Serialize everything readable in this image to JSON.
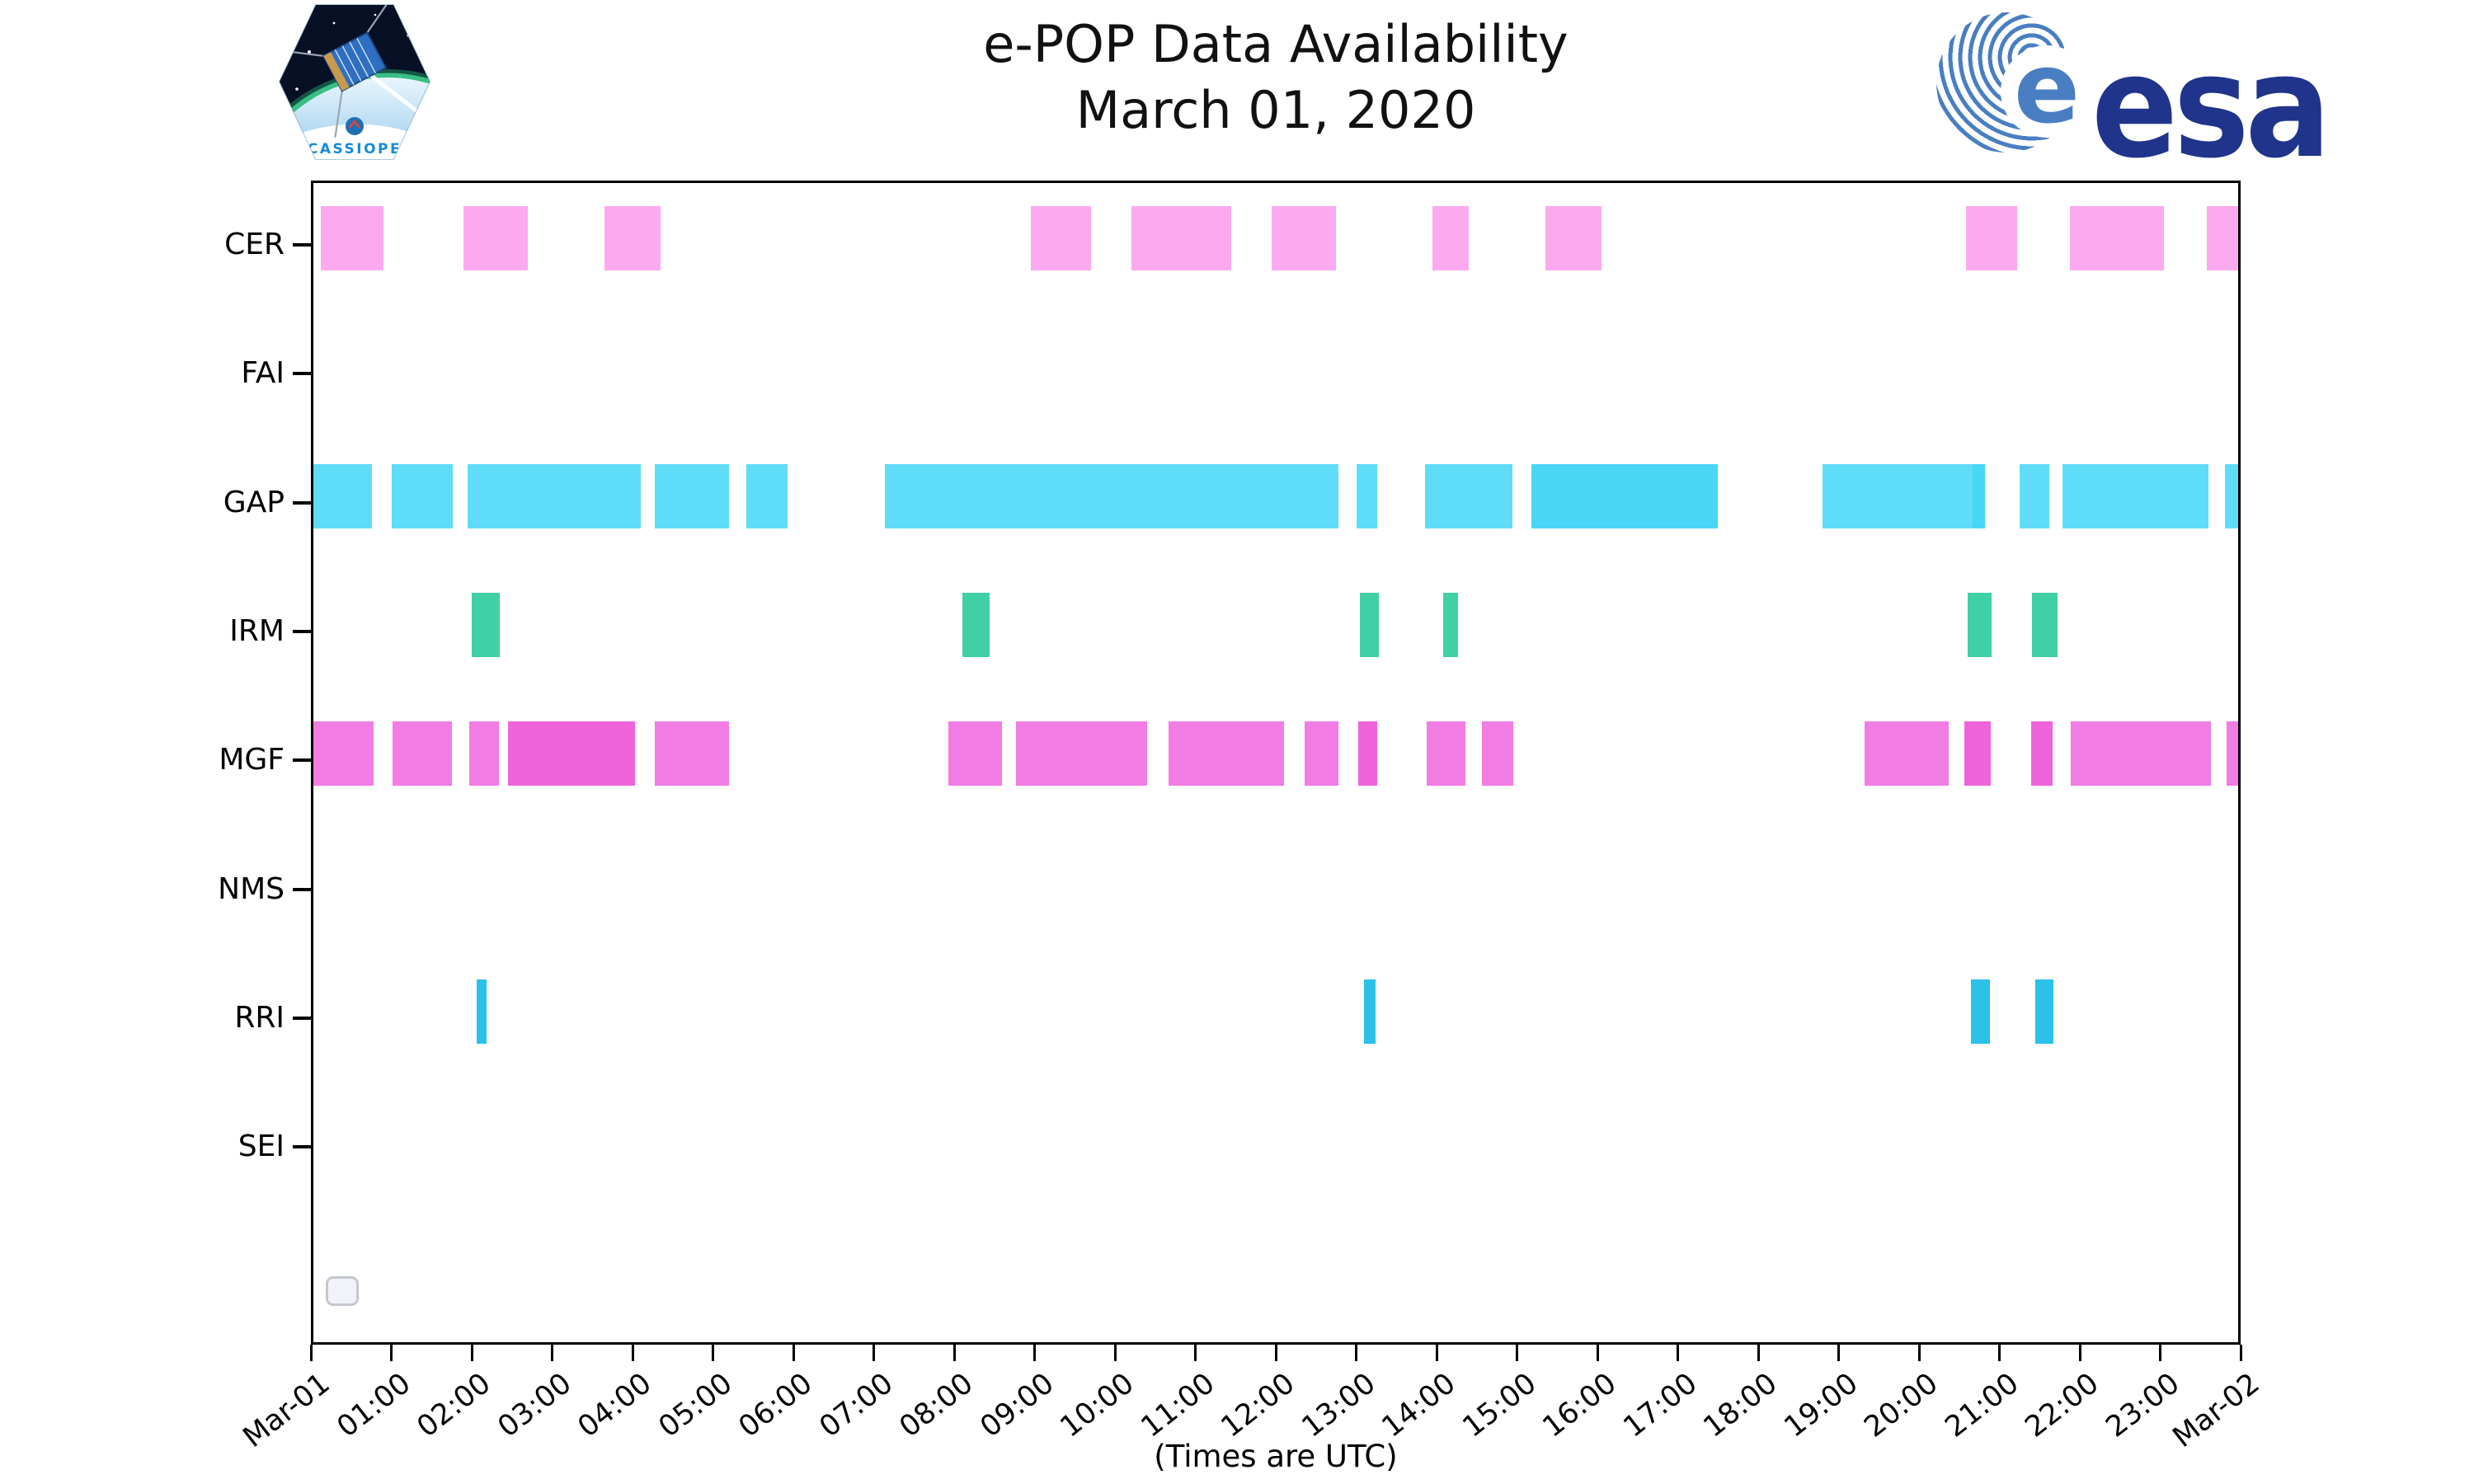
{
  "title": {
    "line1": "e-POP Data Availability",
    "line2": "March 01, 2020"
  },
  "axis": {
    "caption": "(Times are UTC)"
  },
  "logos": {
    "cassiope_label": "CASSIOPE",
    "esa_wordmark": "esa",
    "esa_globe_letter": "e"
  },
  "chart_data": {
    "type": "bar",
    "subtype": "broken-bar-availability-timeline",
    "title": "e-POP Data Availability March 01, 2020",
    "xlabel": "(Times are UTC)",
    "xlim_hours": [
      0,
      24
    ],
    "grid": false,
    "x_ticks": [
      "Mar-01",
      "01:00",
      "02:00",
      "03:00",
      "04:00",
      "05:00",
      "06:00",
      "07:00",
      "08:00",
      "09:00",
      "10:00",
      "11:00",
      "12:00",
      "13:00",
      "14:00",
      "15:00",
      "16:00",
      "17:00",
      "18:00",
      "19:00",
      "20:00",
      "21:00",
      "22:00",
      "23:00",
      "Mar-02"
    ],
    "rows": [
      "CER",
      "FAI",
      "GAP",
      "IRM",
      "MGF",
      "NMS",
      "RRI",
      "SEI"
    ],
    "colors": {
      "CER": {
        "normal": "#fbaaef"
      },
      "FAI": {
        "normal": "#cccccc"
      },
      "GAP": {
        "normal": "#5fdcf8",
        "dark": "#49d6f7"
      },
      "IRM": {
        "normal": "#3fd0a5"
      },
      "MGF": {
        "normal": "#f17ce3",
        "dark": "#ef63db"
      },
      "NMS": {
        "normal": "#cccccc"
      },
      "RRI": {
        "normal": "#2bc1e8"
      },
      "SEI": {
        "normal": "#cccccc"
      }
    },
    "series": [
      {
        "row": "CER",
        "segments": [
          {
            "s": 0.12,
            "e": 0.9,
            "shade": "normal"
          },
          {
            "s": 1.9,
            "e": 2.7,
            "shade": "normal"
          },
          {
            "s": 3.65,
            "e": 4.35,
            "shade": "normal"
          },
          {
            "s": 8.95,
            "e": 9.7,
            "shade": "normal"
          },
          {
            "s": 10.2,
            "e": 11.45,
            "shade": "normal"
          },
          {
            "s": 11.95,
            "e": 12.75,
            "shade": "normal"
          },
          {
            "s": 13.95,
            "e": 14.4,
            "shade": "normal"
          },
          {
            "s": 15.35,
            "e": 16.05,
            "shade": "normal"
          },
          {
            "s": 20.58,
            "e": 21.22,
            "shade": "normal"
          },
          {
            "s": 21.88,
            "e": 23.05,
            "shade": "normal"
          },
          {
            "s": 23.58,
            "e": 24.0,
            "shade": "normal"
          }
        ]
      },
      {
        "row": "FAI",
        "segments": []
      },
      {
        "row": "GAP",
        "segments": [
          {
            "s": 0.02,
            "e": 0.76,
            "shade": "normal"
          },
          {
            "s": 1.0,
            "e": 1.76,
            "shade": "normal"
          },
          {
            "s": 1.95,
            "e": 4.1,
            "shade": "normal"
          },
          {
            "s": 4.28,
            "e": 5.2,
            "shade": "normal"
          },
          {
            "s": 5.42,
            "e": 5.93,
            "shade": "normal"
          },
          {
            "s": 7.14,
            "e": 12.78,
            "shade": "normal"
          },
          {
            "s": 13.0,
            "e": 13.26,
            "shade": "normal"
          },
          {
            "s": 13.86,
            "e": 14.94,
            "shade": "normal"
          },
          {
            "s": 15.18,
            "e": 17.5,
            "shade": "dark"
          },
          {
            "s": 18.8,
            "e": 20.67,
            "shade": "normal"
          },
          {
            "s": 20.67,
            "e": 20.82,
            "shade": "dark"
          },
          {
            "s": 21.25,
            "e": 21.62,
            "shade": "normal"
          },
          {
            "s": 21.78,
            "e": 23.6,
            "shade": "normal"
          },
          {
            "s": 23.8,
            "e": 24.0,
            "shade": "normal"
          }
        ]
      },
      {
        "row": "IRM",
        "segments": [
          {
            "s": 2.0,
            "e": 2.35,
            "shade": "normal"
          },
          {
            "s": 8.1,
            "e": 8.44,
            "shade": "normal"
          },
          {
            "s": 13.05,
            "e": 13.28,
            "shade": "normal"
          },
          {
            "s": 14.08,
            "e": 14.27,
            "shade": "normal"
          },
          {
            "s": 20.6,
            "e": 20.9,
            "shade": "normal"
          },
          {
            "s": 21.4,
            "e": 21.72,
            "shade": "normal"
          }
        ]
      },
      {
        "row": "MGF",
        "segments": [
          {
            "s": 0.0,
            "e": 0.78,
            "shade": "normal"
          },
          {
            "s": 1.02,
            "e": 1.75,
            "shade": "normal"
          },
          {
            "s": 1.97,
            "e": 2.34,
            "shade": "normal"
          },
          {
            "s": 2.45,
            "e": 3.17,
            "shade": "dark"
          },
          {
            "s": 3.17,
            "e": 4.03,
            "shade": "dark"
          },
          {
            "s": 4.28,
            "e": 5.2,
            "shade": "normal"
          },
          {
            "s": 7.93,
            "e": 8.6,
            "shade": "normal"
          },
          {
            "s": 8.77,
            "e": 10.4,
            "shade": "normal"
          },
          {
            "s": 10.67,
            "e": 12.1,
            "shade": "normal"
          },
          {
            "s": 12.36,
            "e": 12.78,
            "shade": "normal"
          },
          {
            "s": 13.03,
            "e": 13.26,
            "shade": "dark"
          },
          {
            "s": 13.88,
            "e": 14.36,
            "shade": "normal"
          },
          {
            "s": 14.56,
            "e": 14.95,
            "shade": "normal"
          },
          {
            "s": 19.32,
            "e": 20.37,
            "shade": "normal"
          },
          {
            "s": 20.56,
            "e": 20.89,
            "shade": "dark"
          },
          {
            "s": 21.39,
            "e": 21.66,
            "shade": "dark"
          },
          {
            "s": 21.89,
            "e": 23.63,
            "shade": "normal"
          },
          {
            "s": 23.83,
            "e": 24.0,
            "shade": "normal"
          }
        ]
      },
      {
        "row": "NMS",
        "segments": []
      },
      {
        "row": "RRI",
        "segments": [
          {
            "s": 2.06,
            "e": 2.18,
            "shade": "normal"
          },
          {
            "s": 13.1,
            "e": 13.24,
            "shade": "normal"
          },
          {
            "s": 20.65,
            "e": 20.88,
            "shade": "normal"
          },
          {
            "s": 21.45,
            "e": 21.67,
            "shade": "normal"
          }
        ]
      },
      {
        "row": "SEI",
        "segments": []
      }
    ]
  }
}
